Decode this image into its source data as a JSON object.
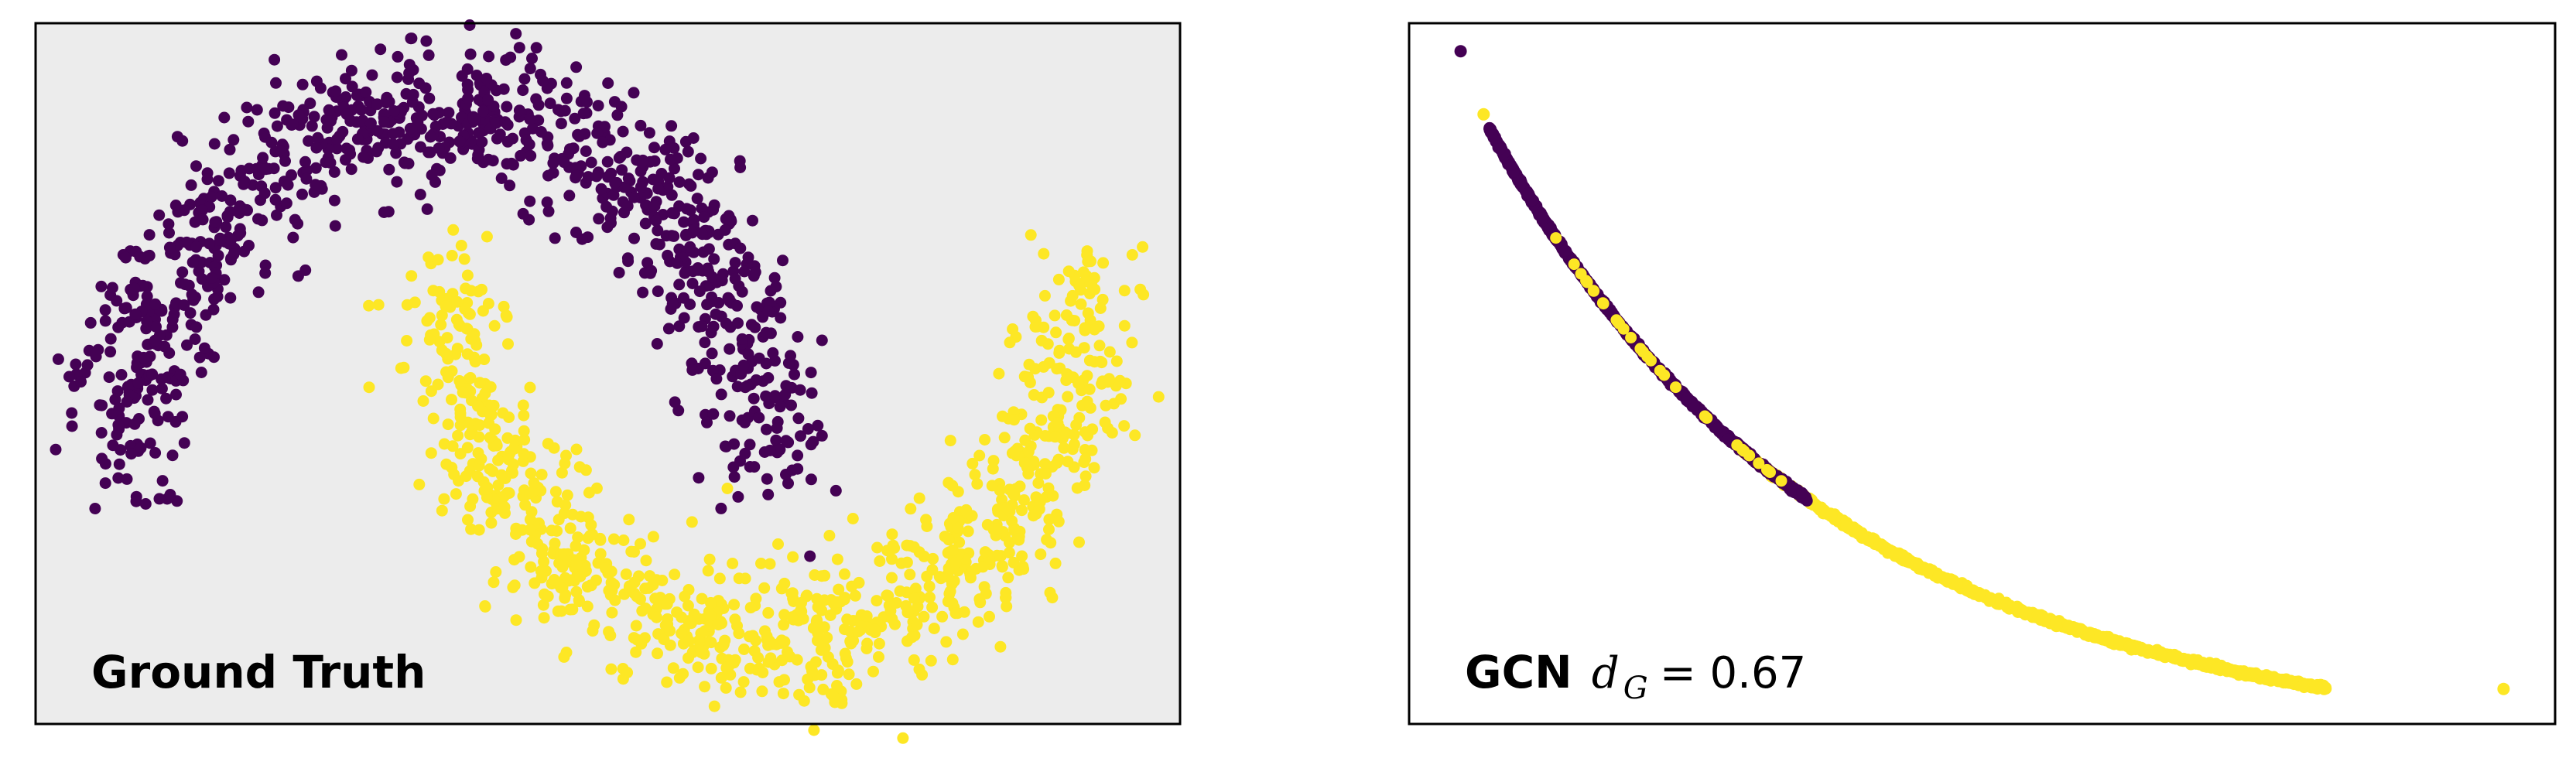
{
  "chart_data": [
    {
      "type": "scatter",
      "title": "Ground Truth",
      "background": "#ececec",
      "grid": false,
      "axes_visible": false,
      "xlim": [
        -1.3,
        2.3
      ],
      "ylim": [
        -0.75,
        1.25
      ],
      "series": [
        {
          "color": "#440154",
          "description": "upper moon, class 0, approx 1000 points along arc center (0,0) radius 1 from 0 to 180 degrees, noise ~0.1",
          "arc": {
            "cx": 0.0,
            "cy": 0.0,
            "r": 1.0,
            "theta_start_deg": 0,
            "theta_end_deg": 180,
            "noise": 0.1,
            "n": 1000
          }
        },
        {
          "color": "#fde725",
          "description": "lower moon, class 1, approx 1000 points along arc center (1,0.5) radius 1 from 180 to 360 degrees, noise ~0.1",
          "arc": {
            "cx": 1.0,
            "cy": 0.5,
            "r": 1.0,
            "theta_start_deg": 180,
            "theta_end_deg": 360,
            "noise": 0.1,
            "n": 1000
          }
        }
      ]
    },
    {
      "type": "scatter",
      "title": "GCN",
      "annotation_var": "d",
      "annotation_sub": "G",
      "annotation_value": "= 0.67",
      "background": "#ffffff",
      "grid": false,
      "axes_visible": false,
      "xlim": [
        0.0,
        1.0
      ],
      "ylim": [
        0.0,
        1.0
      ],
      "curve": {
        "x0": 0.07,
        "x1": 0.8,
        "k": 2.6
      },
      "series": [
        {
          "color": "#440154",
          "description": "class 0 embeddings packed densely along the upper part of the curve",
          "range": [
            0.0,
            0.38
          ]
        },
        {
          "color": "#fde725",
          "description": "class 1 embeddings along the lower tail of the curve, some interleaved",
          "range": [
            0.3,
            1.0
          ]
        }
      ],
      "outliers": [
        {
          "x": 0.045,
          "y": 0.96,
          "color": "#440154"
        },
        {
          "x": 0.065,
          "y": 0.87,
          "color": "#fde725"
        },
        {
          "x": 0.955,
          "y": 0.05,
          "color": "#fde725"
        }
      ]
    }
  ],
  "labels": {
    "left": "Ground Truth",
    "right_bold": "GCN",
    "right_var": "d",
    "right_sub": "G",
    "right_value": "= 0.67"
  }
}
